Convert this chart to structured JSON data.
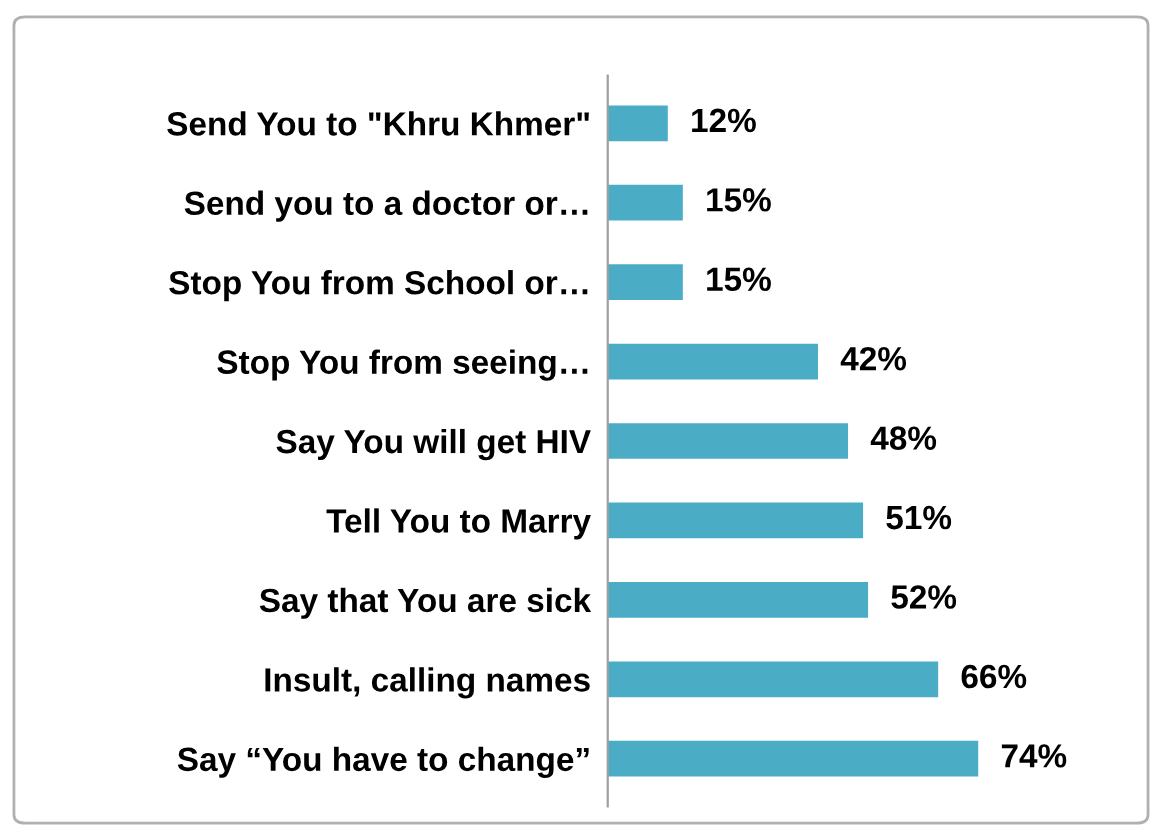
{
  "chart_data": {
    "type": "bar",
    "orientation": "horizontal",
    "categories": [
      "Send You to \"Khru Khmer\"",
      "Send you to a doctor or…",
      "Stop You from School or…",
      "Stop You from seeing…",
      "Say You will get HIV",
      "Tell You to Marry",
      "Say that You are sick",
      "Insult, calling names",
      "Say “You have to change”"
    ],
    "values": [
      12,
      15,
      15,
      42,
      48,
      51,
      52,
      66,
      74
    ],
    "value_labels": [
      "12%",
      "15%",
      "15%",
      "42%",
      "48%",
      "51%",
      "52%",
      "66%",
      "74%"
    ],
    "color": "#4bacc6",
    "grid": false,
    "legend": false
  }
}
